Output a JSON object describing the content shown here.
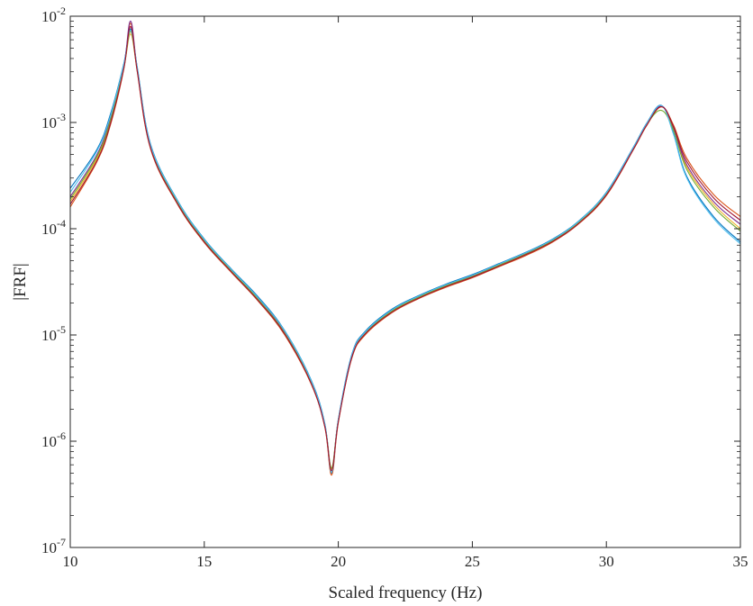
{
  "chart_data": {
    "type": "line",
    "title": "",
    "xlabel": "Scaled frequency (Hz)",
    "ylabel": "|FRF|",
    "xlim": [
      10,
      35
    ],
    "ylim": [
      1e-07,
      0.01
    ],
    "yscale": "log",
    "grid": false,
    "legend": "none",
    "x_ticks": [
      {
        "value": 10,
        "label": "10"
      },
      {
        "value": 15,
        "label": "15"
      },
      {
        "value": 20,
        "label": "20"
      },
      {
        "value": 25,
        "label": "25"
      },
      {
        "value": 30,
        "label": "30"
      },
      {
        "value": 35,
        "label": "35"
      }
    ],
    "y_ticks": [
      {
        "value": 1e-07,
        "base": "10",
        "exp": "-7"
      },
      {
        "value": 1e-06,
        "base": "10",
        "exp": "-6"
      },
      {
        "value": 1e-05,
        "base": "10",
        "exp": "-5"
      },
      {
        "value": 0.0001,
        "base": "10",
        "exp": "-4"
      },
      {
        "value": 0.001,
        "base": "10",
        "exp": "-3"
      },
      {
        "value": 0.01,
        "base": "10",
        "exp": "-2"
      }
    ],
    "series": [
      {
        "color": "#0072BD",
        "x": [
          10,
          11,
          11.5,
          12,
          12.25,
          12.5,
          13,
          14,
          15,
          16,
          17,
          18,
          19,
          19.5,
          19.75,
          20,
          20.5,
          21,
          22,
          23,
          24,
          25,
          26,
          27,
          28,
          29,
          30,
          31,
          31.5,
          32.05,
          32.5,
          33,
          34,
          35
        ],
        "y": [
          0.00024,
          0.00056,
          0.0012,
          0.0036,
          0.0076,
          0.0033,
          0.00062,
          0.000185,
          8e-05,
          4.2e-05,
          2.3e-05,
          1.1e-05,
          3.7e-06,
          1.45e-06,
          5e-07,
          1.6e-06,
          6.5e-06,
          1.08e-05,
          1.75e-05,
          2.35e-05,
          3e-05,
          3.7e-05,
          4.7e-05,
          6e-05,
          8e-05,
          0.00012,
          0.00022,
          0.00058,
          0.00098,
          0.00145,
          0.0008,
          0.00031,
          0.00013,
          7.5e-05
        ]
      },
      {
        "color": "#D95319",
        "x": [
          10,
          11,
          11.5,
          12,
          12.25,
          12.5,
          13,
          14,
          15,
          16,
          17,
          18,
          19,
          19.5,
          19.75,
          20,
          20.5,
          21,
          22,
          23,
          24,
          25,
          26,
          27,
          28,
          29,
          30,
          31,
          31.5,
          32.05,
          32.5,
          33,
          34,
          35
        ],
        "y": [
          0.00016,
          0.00043,
          0.00095,
          0.0032,
          0.0086,
          0.003,
          0.00056,
          0.00017,
          7.4e-05,
          3.9e-05,
          2.1e-05,
          1e-05,
          3.4e-06,
          1.35e-06,
          4.8e-07,
          1.5e-06,
          6e-06,
          1e-05,
          1.62e-05,
          2.2e-05,
          2.8e-05,
          3.45e-05,
          4.4e-05,
          5.6e-05,
          7.5e-05,
          0.000113,
          0.000205,
          0.00055,
          0.00093,
          0.0014,
          0.00095,
          0.00046,
          0.00021,
          0.00013
        ]
      },
      {
        "color": "#EDB120",
        "x": [
          10,
          11,
          11.5,
          12,
          12.25,
          12.5,
          13,
          14,
          15,
          16,
          17,
          18,
          19,
          19.5,
          19.75,
          20,
          20.5,
          21,
          22,
          23,
          24,
          25,
          26,
          27,
          28,
          29,
          30,
          31,
          31.5,
          32.05,
          32.5,
          33,
          34,
          35
        ],
        "y": [
          0.00018,
          0.00046,
          0.001,
          0.0033,
          0.0068,
          0.0031,
          0.00058,
          0.000175,
          7.6e-05,
          4e-05,
          2.15e-05,
          1.03e-05,
          3.5e-06,
          1.38e-06,
          5.5e-07,
          1.55e-06,
          6.2e-06,
          1.03e-05,
          1.66e-05,
          2.25e-05,
          2.87e-05,
          3.53e-05,
          4.5e-05,
          5.75e-05,
          7.7e-05,
          0.000116,
          0.00021,
          0.00056,
          0.00095,
          0.00142,
          0.00088,
          0.00038,
          0.00017,
          0.0001
        ]
      },
      {
        "color": "#7E2F8E",
        "x": [
          10,
          11,
          11.5,
          12,
          12.25,
          12.5,
          13,
          14,
          15,
          16,
          17,
          18,
          19,
          19.5,
          19.75,
          20,
          20.5,
          21,
          22,
          23,
          24,
          25,
          26,
          27,
          28,
          29,
          30,
          31,
          31.5,
          32.05,
          32.5,
          33,
          34,
          35
        ],
        "y": [
          0.0002,
          0.0005,
          0.0011,
          0.00345,
          0.009,
          0.0032,
          0.0006,
          0.00018,
          7.8e-05,
          4.1e-05,
          2.2e-05,
          1.06e-05,
          3.6e-06,
          1.4e-06,
          5.2e-07,
          1.58e-06,
          6.3e-06,
          1.05e-05,
          1.7e-05,
          2.3e-05,
          2.93e-05,
          3.6e-05,
          4.6e-05,
          5.85e-05,
          7.8e-05,
          0.000118,
          0.000215,
          0.00057,
          0.00096,
          0.00143,
          0.0009,
          0.0004,
          0.00018,
          0.00011
        ]
      },
      {
        "color": "#77AC30",
        "x": [
          10,
          11,
          11.5,
          12,
          12.25,
          12.5,
          13,
          14,
          15,
          16,
          17,
          18,
          19,
          19.5,
          19.75,
          20,
          20.5,
          21,
          22,
          23,
          24,
          25,
          26,
          27,
          28,
          29,
          30,
          31,
          31.5,
          32.05,
          32.5,
          33,
          34,
          35
        ],
        "y": [
          0.00019,
          0.00048,
          0.00105,
          0.00335,
          0.0072,
          0.00315,
          0.00059,
          0.000177,
          7.7e-05,
          4.05e-05,
          2.18e-05,
          1.04e-05,
          3.55e-06,
          1.39e-06,
          5.6e-07,
          1.56e-06,
          6.25e-06,
          1.04e-05,
          1.68e-05,
          2.27e-05,
          2.9e-05,
          3.56e-05,
          4.55e-05,
          5.8e-05,
          7.75e-05,
          0.000117,
          0.000212,
          0.000565,
          0.000955,
          0.0013,
          0.00085,
          0.00036,
          0.00016,
          9.5e-05
        ]
      },
      {
        "color": "#4DBEEE",
        "x": [
          10,
          11,
          11.5,
          12,
          12.25,
          12.5,
          13,
          14,
          15,
          16,
          17,
          18,
          19,
          19.5,
          19.75,
          20,
          20.5,
          21,
          22,
          23,
          24,
          25,
          26,
          27,
          28,
          29,
          30,
          31,
          31.5,
          32.05,
          32.5,
          33,
          34,
          35
        ],
        "y": [
          0.00022,
          0.00054,
          0.00115,
          0.00355,
          0.0074,
          0.00325,
          0.00061,
          0.000183,
          7.9e-05,
          4.15e-05,
          2.25e-05,
          1.09e-05,
          3.65e-06,
          1.43e-06,
          5.1e-07,
          1.59e-06,
          6.4e-06,
          1.06e-05,
          1.72e-05,
          2.32e-05,
          2.96e-05,
          3.65e-05,
          4.65e-05,
          5.95e-05,
          7.9e-05,
          0.000119,
          0.000218,
          0.000575,
          0.00097,
          0.00144,
          0.00078,
          0.0003,
          0.000125,
          7.2e-05
        ]
      },
      {
        "color": "#A2142F",
        "x": [
          10,
          11,
          11.5,
          12,
          12.25,
          12.5,
          13,
          14,
          15,
          16,
          17,
          18,
          19,
          19.5,
          19.75,
          20,
          20.5,
          21,
          22,
          23,
          24,
          25,
          26,
          27,
          28,
          29,
          30,
          31,
          31.5,
          32.05,
          32.5,
          33,
          34,
          35
        ],
        "y": [
          0.00017,
          0.00044,
          0.00098,
          0.00325,
          0.008,
          0.00305,
          0.00057,
          0.000172,
          7.5e-05,
          3.95e-05,
          2.12e-05,
          1.02e-05,
          3.45e-06,
          1.36e-06,
          5.3e-07,
          1.52e-06,
          6.1e-06,
          1.02e-05,
          1.64e-05,
          2.22e-05,
          2.84e-05,
          3.5e-05,
          4.45e-05,
          5.7e-05,
          7.6e-05,
          0.000114,
          0.000208,
          0.000555,
          0.00094,
          0.00141,
          0.00092,
          0.00043,
          0.000195,
          0.00012
        ]
      }
    ]
  }
}
